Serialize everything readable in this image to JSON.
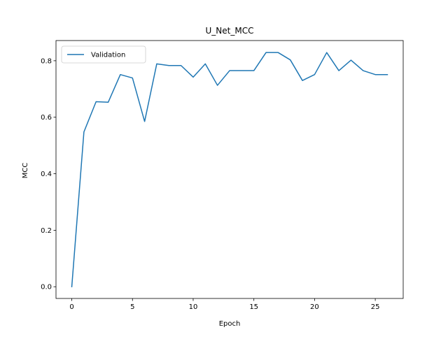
{
  "chart_data": {
    "type": "line",
    "title": "U_Net_MCC",
    "xlabel": "Epoch",
    "ylabel": "MCC",
    "xlim": [
      -1.3,
      27.3
    ],
    "ylim": [
      -0.0415,
      0.8715
    ],
    "xticks": [
      0,
      5,
      10,
      15,
      20,
      25
    ],
    "xtick_labels": [
      "0",
      "5",
      "10",
      "15",
      "20",
      "25"
    ],
    "yticks": [
      0.0,
      0.2,
      0.4,
      0.6,
      0.8
    ],
    "ytick_labels": [
      "0.0",
      "0.2",
      "0.4",
      "0.6",
      "0.8"
    ],
    "grid": false,
    "legend": {
      "position": "upper-left",
      "entries": [
        "Validation"
      ]
    },
    "series": [
      {
        "name": "Validation",
        "color": "#1f77b4",
        "x": [
          0,
          1,
          2,
          3,
          4,
          5,
          6,
          7,
          8,
          9,
          10,
          11,
          12,
          13,
          14,
          15,
          16,
          17,
          18,
          19,
          20,
          21,
          22,
          23,
          24,
          25,
          26
        ],
        "y": [
          0.0,
          0.548,
          0.655,
          0.653,
          0.751,
          0.739,
          0.585,
          0.789,
          0.783,
          0.783,
          0.742,
          0.789,
          0.713,
          0.765,
          0.765,
          0.765,
          0.829,
          0.829,
          0.803,
          0.73,
          0.751,
          0.829,
          0.765,
          0.802,
          0.765,
          0.751,
          0.751
        ]
      }
    ]
  }
}
